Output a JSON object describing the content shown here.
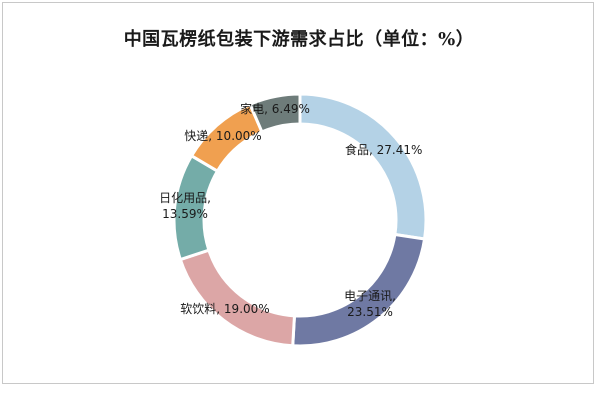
{
  "chart_data": {
    "type": "pie",
    "title": "中国瓦楞纸包装下游需求占比（单位：%）",
    "donut": true,
    "start_angle_deg": 0,
    "direction": "clockwise",
    "slices": [
      {
        "label": "食品",
        "value": 27.41,
        "display": "食品, 27.41%",
        "color": "#b4d2e6"
      },
      {
        "label": "电子通讯",
        "value": 23.51,
        "display": "电子通讯, 23.51%",
        "color": "#6f79a3"
      },
      {
        "label": "软饮料",
        "value": 19.0,
        "display": "软饮料, 19.00%",
        "color": "#dca6a6"
      },
      {
        "label": "日化用品",
        "value": 13.59,
        "display": "日化用品, 13.59%",
        "color": "#74aca8"
      },
      {
        "label": "快递",
        "value": 10.0,
        "display": "快递, 10.00%",
        "color": "#f0a050"
      },
      {
        "label": "家电",
        "value": 6.49,
        "display": "家电, 6.49%",
        "color": "#6e7c7a"
      }
    ]
  }
}
